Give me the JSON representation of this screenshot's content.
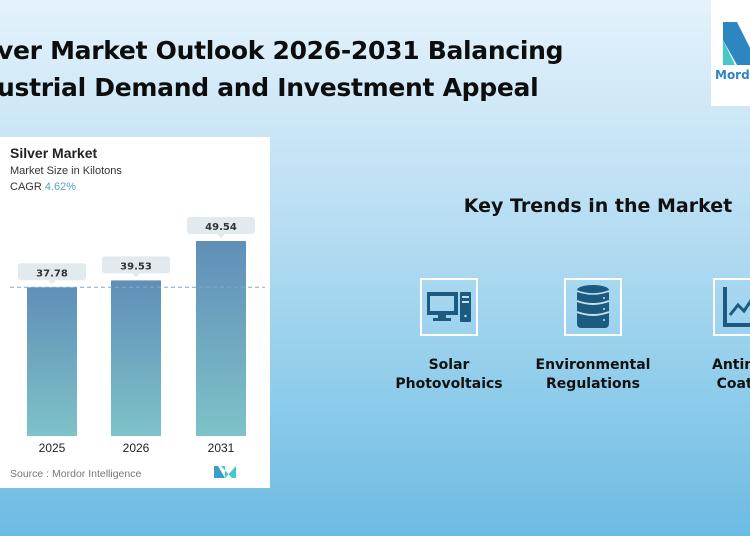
{
  "title": {
    "line1": "ver Market Outlook 2026-2031 Balancing",
    "line2": "ustrial Demand and Investment Appeal"
  },
  "logo": {
    "text": "Mordo"
  },
  "card": {
    "title": "Silver Market",
    "subtitle": "Market Size in Kilotons",
    "cagr_label": "CAGR",
    "cagr_value": "4.62%",
    "source": "Source :  Mordor Intelligence"
  },
  "chart_data": {
    "type": "bar",
    "title": "Silver Market",
    "ylabel": "Market Size in Kilotons",
    "categories": [
      "2025",
      "2026",
      "2031"
    ],
    "values": [
      37.78,
      39.53,
      49.54
    ],
    "labels": [
      "37.78",
      "39.53",
      "49.54"
    ],
    "ylim": [
      0,
      49.54
    ],
    "reference_line": 37.78
  },
  "trends": {
    "heading": "Key Trends in the Market",
    "items": [
      {
        "icon": "computer-icon",
        "line1": "Solar",
        "line2": "Photovoltaics"
      },
      {
        "icon": "database-icon",
        "line1": "Environmental",
        "line2": "Regulations"
      },
      {
        "icon": "line-chart-icon",
        "line1": "Antimic",
        "line2": "Coatin"
      }
    ]
  },
  "colors": {
    "bar_top": "#5f8fb8",
    "bar_bottom": "#7fc2c8",
    "icon": "#1c5a80",
    "cagr": "#5aa0c8"
  }
}
